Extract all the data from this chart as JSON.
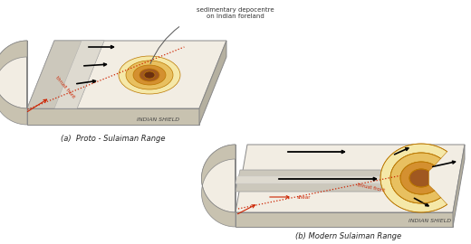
{
  "bg_color": "#ffffff",
  "title_a": "(a)  Proto - Sulaiman Range",
  "title_b": "(b) Modern Sulaiman Range",
  "annotation_top": "sedimentary depocentre\non Indian foreland",
  "indian_shield_label": "INDIAN SHIELD",
  "thrust_front_label": "thrust front",
  "shear_label": "shear",
  "thrust_front_b_label": "thrust front",
  "plate_top_color": "#f2ede3",
  "plate_front_color": "#c8c2b0",
  "plate_side_color": "#b5b0a0",
  "fold_gray": "#ccc8bc",
  "fold_light": "#dedad0",
  "ellipse_colors": [
    "#f5e8a8",
    "#e8c060",
    "#d49030",
    "#a05820",
    "#6b3010"
  ],
  "arc_fill_colors": [
    "#f5e8a8",
    "#e8c060",
    "#d49030",
    "#a05820"
  ],
  "red_dotted": "#cc2200",
  "arrow_color": "#111111",
  "text_color": "#333333"
}
